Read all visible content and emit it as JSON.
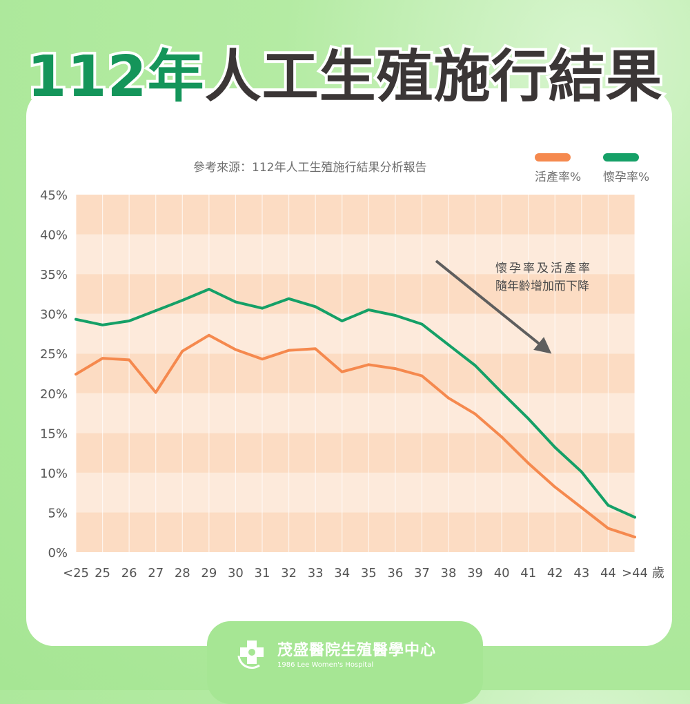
{
  "header": {
    "title_highlight": "112年",
    "title_rest": "人工生殖施行結果"
  },
  "source_text": "參考來源：112年人工生殖施行結果分析報告",
  "annotation": [
    "懷孕率及活產率",
    "隨年齡增加而下降"
  ],
  "footer": {
    "name": "茂盛醫院生殖醫學中心",
    "subtitle": "1986 Lee Women's Hospital"
  },
  "colors": {
    "live_birth": "#f5894e",
    "pregnancy": "#15a067",
    "title_green": "#14955a",
    "band_dark": "#fcdcc3",
    "band_light": "#fdeadb"
  },
  "chart_data": {
    "type": "line",
    "categories": [
      "<25",
      "25",
      "26",
      "27",
      "28",
      "29",
      "30",
      "31",
      "32",
      "33",
      "34",
      "35",
      "36",
      "37",
      "38",
      "39",
      "40",
      "41",
      "42",
      "43",
      "44",
      ">44"
    ],
    "x_unit": "歲",
    "y_ticks": [
      "0%",
      "5%",
      "10%",
      "15%",
      "20%",
      "25%",
      "30%",
      "35%",
      "40%",
      "45%"
    ],
    "ylim": [
      0,
      45
    ],
    "legend_position": "top-right",
    "series": [
      {
        "name": "活產率%",
        "color": "#f5894e",
        "values": [
          22.4,
          24.4,
          24.2,
          20.1,
          25.3,
          27.3,
          25.5,
          24.3,
          25.4,
          25.6,
          22.7,
          23.6,
          23.1,
          22.2,
          19.4,
          17.4,
          14.5,
          11.2,
          8.2,
          5.6,
          3.0,
          1.9
        ]
      },
      {
        "name": "懷孕率%",
        "color": "#15a067",
        "values": [
          29.3,
          28.6,
          29.1,
          30.4,
          31.7,
          33.1,
          31.5,
          30.7,
          31.9,
          30.9,
          29.1,
          30.5,
          29.8,
          28.7,
          26.1,
          23.5,
          20.1,
          16.8,
          13.2,
          10.1,
          5.9,
          4.4
        ]
      }
    ]
  }
}
